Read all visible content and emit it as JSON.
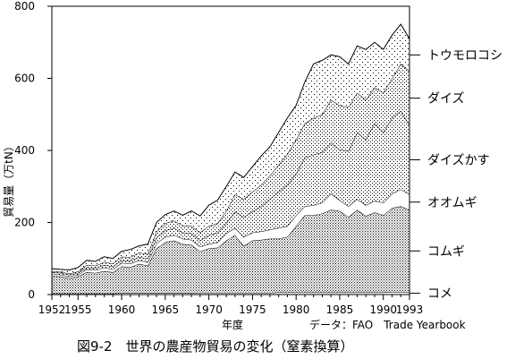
{
  "chart_data": {
    "type": "area",
    "stacked": true,
    "title": "図9-2　世界の農産物貿易の変化（窒素換算）",
    "xlabel": "年度",
    "ylabel": "貿易量（万tN）",
    "source": "データ：FAO　Trade Yearbook",
    "xlim": [
      1952,
      1993
    ],
    "ylim": [
      0,
      800
    ],
    "x_ticks": [
      1952,
      1955,
      1960,
      1965,
      1970,
      1975,
      1980,
      1985,
      1990,
      1993
    ],
    "y_ticks": [
      0,
      200,
      400,
      600,
      800
    ],
    "grid": false,
    "legend": "right-side labels",
    "x": [
      1952,
      1953,
      1954,
      1955,
      1956,
      1957,
      1958,
      1959,
      1960,
      1961,
      1962,
      1963,
      1964,
      1965,
      1966,
      1967,
      1968,
      1969,
      1970,
      1971,
      1972,
      1973,
      1974,
      1975,
      1976,
      1977,
      1978,
      1979,
      1980,
      1981,
      1982,
      1983,
      1984,
      1985,
      1986,
      1987,
      1988,
      1989,
      1990,
      1991,
      1992,
      1993
    ],
    "series": [
      {
        "name": "コメ",
        "fill": "white",
        "cumulative": [
          3,
          3,
          3,
          3,
          3,
          3,
          3,
          3,
          4,
          4,
          4,
          4,
          4,
          4,
          4,
          4,
          4,
          5,
          5,
          5,
          5,
          5,
          5,
          5,
          5,
          5,
          6,
          6,
          6,
          6,
          6,
          6,
          6,
          6,
          6,
          6,
          6,
          6,
          6,
          7,
          7,
          7
        ]
      },
      {
        "name": "コムギ",
        "fill": "dense",
        "cumulative": [
          52,
          50,
          45,
          50,
          62,
          60,
          65,
          62,
          78,
          76,
          85,
          80,
          128,
          145,
          150,
          140,
          138,
          120,
          128,
          130,
          150,
          165,
          135,
          150,
          152,
          155,
          155,
          160,
          190,
          220,
          220,
          225,
          235,
          232,
          215,
          235,
          218,
          228,
          220,
          240,
          245,
          235
        ]
      },
      {
        "name": "オオムギ",
        "fill": "white",
        "cumulative": [
          58,
          55,
          50,
          55,
          70,
          68,
          75,
          70,
          88,
          86,
          95,
          90,
          142,
          160,
          165,
          155,
          152,
          133,
          140,
          145,
          170,
          185,
          160,
          172,
          175,
          180,
          185,
          190,
          220,
          245,
          248,
          255,
          280,
          262,
          245,
          265,
          248,
          260,
          255,
          280,
          292,
          278
        ]
      },
      {
        "name": "ダイズかす",
        "fill": "medium",
        "cumulative": [
          62,
          60,
          55,
          60,
          75,
          74,
          82,
          78,
          95,
          94,
          104,
          100,
          158,
          178,
          184,
          172,
          170,
          150,
          165,
          172,
          198,
          230,
          215,
          230,
          245,
          265,
          285,
          305,
          335,
          380,
          388,
          395,
          420,
          402,
          398,
          450,
          430,
          475,
          450,
          490,
          510,
          470
        ]
      },
      {
        "name": "ダイズ",
        "fill": "medium",
        "cumulative": [
          65,
          63,
          58,
          64,
          82,
          80,
          90,
          86,
          105,
          104,
          116,
          112,
          175,
          198,
          205,
          192,
          190,
          172,
          190,
          198,
          232,
          278,
          265,
          285,
          305,
          330,
          360,
          390,
          430,
          475,
          490,
          500,
          540,
          525,
          520,
          560,
          540,
          575,
          560,
          600,
          640,
          620
        ]
      },
      {
        "name": "トウモロコシ",
        "fill": "sparse",
        "cumulative": [
          72,
          70,
          68,
          75,
          95,
          92,
          105,
          100,
          120,
          125,
          135,
          140,
          200,
          222,
          232,
          220,
          232,
          218,
          248,
          262,
          300,
          340,
          325,
          355,
          385,
          410,
          450,
          490,
          525,
          590,
          640,
          650,
          665,
          660,
          640,
          690,
          680,
          700,
          680,
          720,
          750,
          710
        ]
      }
    ]
  }
}
